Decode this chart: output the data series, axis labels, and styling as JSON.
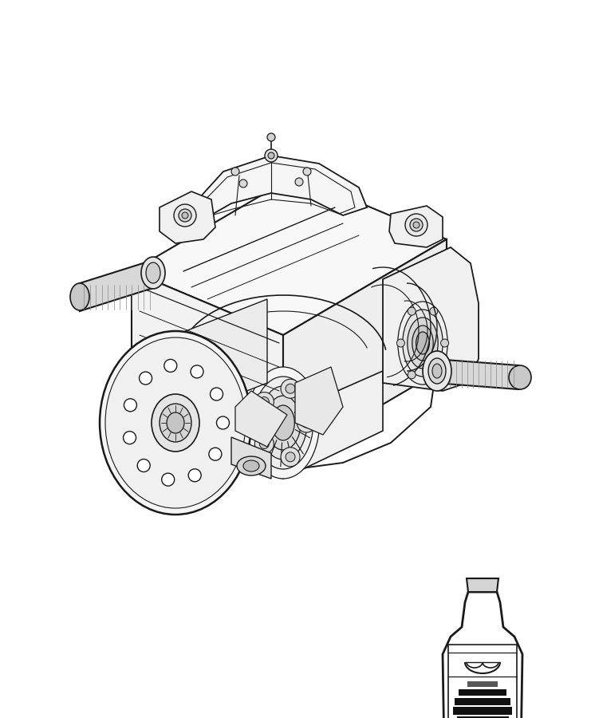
{
  "background_color": "#ffffff",
  "line_color": "#1a1a1a",
  "line_width": 1.2,
  "fig_width": 7.41,
  "fig_height": 9.0,
  "dpi": 100
}
